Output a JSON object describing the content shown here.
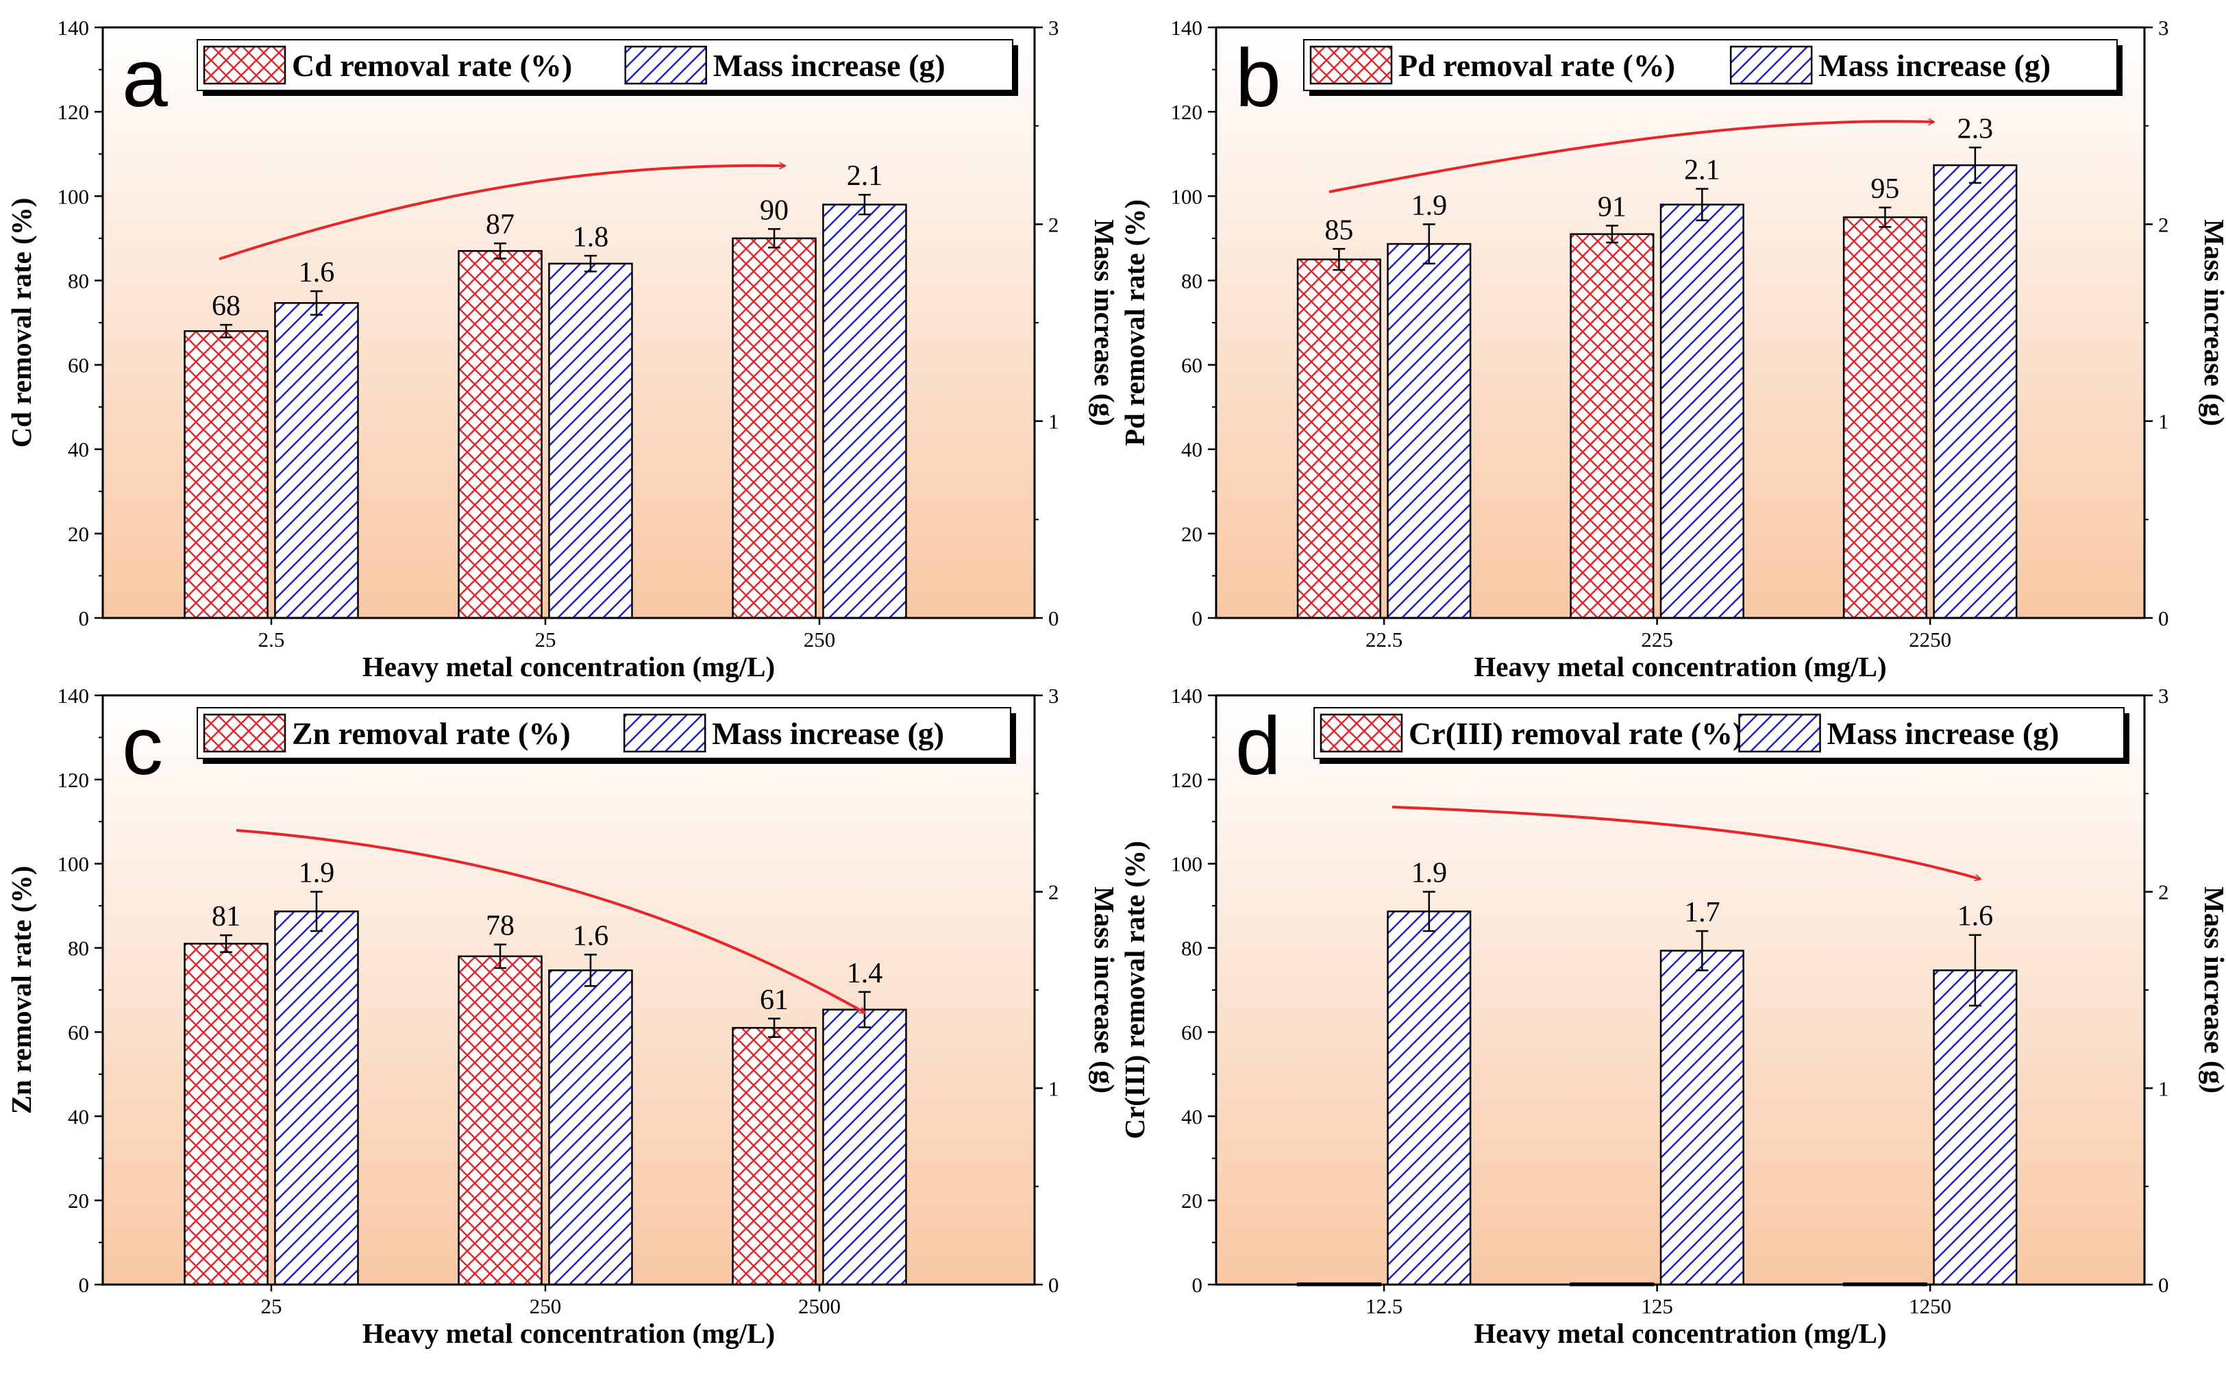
{
  "colors": {
    "bg_top": "#ffffff",
    "bg_bottom": "#f8c8a4",
    "removal": "#e8262a",
    "mass": "#1c20c8",
    "arrow": "#e8262a",
    "axis": "#000000"
  },
  "chart_data": [
    {
      "type": "bar",
      "panel": "a",
      "categories": [
        "2.5",
        "25",
        "250"
      ],
      "series": [
        {
          "name": "Cd removal rate (%)",
          "axis": "left",
          "values": [
            68,
            87,
            90
          ],
          "errors": [
            1.5,
            1.8,
            2.2
          ],
          "labels": [
            "68",
            "87",
            "90"
          ]
        },
        {
          "name": "Mass increase (g)",
          "axis": "right",
          "values": [
            1.6,
            1.8,
            2.1
          ],
          "errors": [
            0.06,
            0.04,
            0.05
          ],
          "labels": [
            "1.6",
            "1.8",
            "2.1"
          ]
        }
      ],
      "xlabel": "Heavy metal concentration (mg/L)",
      "ylabel_left": "Cd removal rate (%)",
      "ylabel_right": "Mass increase (g)",
      "ylim_left": [
        0,
        140
      ],
      "yticks_left": [
        "0",
        "20",
        "40",
        "60",
        "80",
        "100",
        "120",
        "140"
      ],
      "ylim_right": [
        0,
        3
      ],
      "yticks_right": [
        "0",
        "1",
        "2",
        "3"
      ],
      "trend": "increasing",
      "legend": "top"
    },
    {
      "type": "bar",
      "panel": "b",
      "categories": [
        "22.5",
        "225",
        "2250"
      ],
      "series": [
        {
          "name": "Pd removal rate (%)",
          "axis": "left",
          "values": [
            85,
            91,
            95
          ],
          "errors": [
            2.5,
            2.0,
            2.3
          ],
          "labels": [
            "85",
            "91",
            "95"
          ]
        },
        {
          "name": "Mass increase (g)",
          "axis": "right",
          "values": [
            1.9,
            2.1,
            2.3
          ],
          "errors": [
            0.1,
            0.08,
            0.09
          ],
          "labels": [
            "1.9",
            "2.1",
            "2.3"
          ]
        }
      ],
      "xlabel": "Heavy metal concentration (mg/L)",
      "ylabel_left": "Pd removal rate (%)",
      "ylabel_right": "Mass increase (g)",
      "ylim_left": [
        0,
        140
      ],
      "yticks_left": [
        "0",
        "20",
        "40",
        "60",
        "80",
        "100",
        "120",
        "140"
      ],
      "ylim_right": [
        0,
        3
      ],
      "yticks_right": [
        "0",
        "1",
        "2",
        "3"
      ],
      "trend": "increasing",
      "legend": "top"
    },
    {
      "type": "bar",
      "panel": "c",
      "categories": [
        "25",
        "250",
        "2500"
      ],
      "series": [
        {
          "name": "Zn removal rate (%)",
          "axis": "left",
          "values": [
            81,
            78,
            61
          ],
          "errors": [
            2.0,
            2.8,
            2.2
          ],
          "labels": [
            "81",
            "78",
            "61"
          ]
        },
        {
          "name": "Mass increase (g)",
          "axis": "right",
          "values": [
            1.9,
            1.6,
            1.4
          ],
          "errors": [
            0.1,
            0.08,
            0.09
          ],
          "labels": [
            "1.9",
            "1.6",
            "1.4"
          ]
        }
      ],
      "xlabel": "Heavy metal concentration (mg/L)",
      "ylabel_left": "Zn removal rate (%)",
      "ylabel_right": "Mass increase (g)",
      "ylim_left": [
        0,
        140
      ],
      "yticks_left": [
        "0",
        "20",
        "40",
        "60",
        "80",
        "100",
        "120",
        "140"
      ],
      "ylim_right": [
        0,
        3
      ],
      "yticks_right": [
        "0",
        "1",
        "2",
        "3"
      ],
      "trend": "decreasing",
      "legend": "top"
    },
    {
      "type": "bar",
      "panel": "d",
      "categories": [
        "12.5",
        "125",
        "1250"
      ],
      "series": [
        {
          "name": "Cr(III) removal rate (%)",
          "axis": "left",
          "values": [
            0.3,
            0.3,
            0.3
          ],
          "errors": [
            0,
            0,
            0
          ],
          "labels": [
            "",
            "",
            ""
          ]
        },
        {
          "name": "Mass increase (g)",
          "axis": "right",
          "values": [
            1.9,
            1.7,
            1.6
          ],
          "errors": [
            0.1,
            0.1,
            0.18
          ],
          "labels": [
            "1.9",
            "1.7",
            "1.6"
          ]
        }
      ],
      "xlabel": "Heavy metal concentration (mg/L)",
      "ylabel_left": "Cr(III) removal rate (%)",
      "ylabel_right": "Mass increase (g)",
      "ylim_left": [
        0,
        140
      ],
      "yticks_left": [
        "0",
        "20",
        "40",
        "60",
        "80",
        "100",
        "120",
        "140"
      ],
      "ylim_right": [
        0,
        3
      ],
      "yticks_right": [
        "0",
        "1",
        "2",
        "3"
      ],
      "trend": "decreasing",
      "legend": "top"
    }
  ]
}
